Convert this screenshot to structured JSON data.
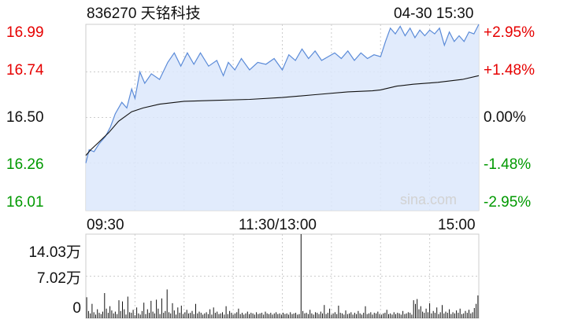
{
  "header": {
    "title": "836270 天铭科技",
    "datetime": "04-30 15:30"
  },
  "watermark": "sina.com",
  "colors": {
    "up": "#e60000",
    "down": "#009900",
    "neutral": "#111111",
    "price_line": "#5b8bd8",
    "price_fill": "#dce8fb",
    "avg_line": "#111111",
    "volume_bar": "#111111"
  },
  "chart_data": {
    "type": "line",
    "price_axis": {
      "left_ticks": [
        "16.99",
        "16.74",
        "16.50",
        "16.26",
        "16.01"
      ],
      "right_ticks": [
        "+2.95%",
        "+1.48%",
        "0.00%",
        "-1.48%",
        "-2.95%"
      ],
      "prev_close": 16.5,
      "ylim": [
        16.01,
        16.99
      ]
    },
    "time_axis": {
      "labels": [
        "09:30",
        "11:30/13:00",
        "15:00"
      ],
      "total_minutes": 240
    },
    "volume_axis": {
      "ticks": [
        "14.03万",
        "7.02万",
        "0"
      ],
      "ylim": [
        0,
        14.03
      ]
    },
    "series": [
      {
        "key": "price",
        "points": [
          [
            0,
            16.26
          ],
          [
            2,
            16.33
          ],
          [
            5,
            16.32
          ],
          [
            8,
            16.36
          ],
          [
            12,
            16.4
          ],
          [
            15,
            16.45
          ],
          [
            18,
            16.52
          ],
          [
            22,
            16.58
          ],
          [
            25,
            16.55
          ],
          [
            28,
            16.65
          ],
          [
            30,
            16.6
          ],
          [
            33,
            16.74
          ],
          [
            36,
            16.68
          ],
          [
            40,
            16.73
          ],
          [
            45,
            16.7
          ],
          [
            50,
            16.79
          ],
          [
            54,
            16.84
          ],
          [
            58,
            16.77
          ],
          [
            62,
            16.84
          ],
          [
            66,
            16.78
          ],
          [
            70,
            16.84
          ],
          [
            75,
            16.77
          ],
          [
            80,
            16.8
          ],
          [
            84,
            16.72
          ],
          [
            87,
            16.79
          ],
          [
            91,
            16.75
          ],
          [
            95,
            16.81
          ],
          [
            100,
            16.75
          ],
          [
            105,
            16.79
          ],
          [
            110,
            16.78
          ],
          [
            115,
            16.81
          ],
          [
            120,
            16.75
          ],
          [
            124,
            16.83
          ],
          [
            128,
            16.8
          ],
          [
            132,
            16.86
          ],
          [
            136,
            16.81
          ],
          [
            140,
            16.85
          ],
          [
            144,
            16.8
          ],
          [
            148,
            16.82
          ],
          [
            152,
            16.84
          ],
          [
            156,
            16.81
          ],
          [
            160,
            16.85
          ],
          [
            164,
            16.8
          ],
          [
            168,
            16.84
          ],
          [
            172,
            16.81
          ],
          [
            176,
            16.83
          ],
          [
            180,
            16.82
          ],
          [
            183,
            16.9
          ],
          [
            186,
            16.97
          ],
          [
            189,
            16.94
          ],
          [
            192,
            16.98
          ],
          [
            195,
            16.93
          ],
          [
            198,
            16.97
          ],
          [
            201,
            16.92
          ],
          [
            204,
            16.96
          ],
          [
            207,
            16.93
          ],
          [
            210,
            16.96
          ],
          [
            213,
            16.94
          ],
          [
            216,
            16.97
          ],
          [
            219,
            16.88
          ],
          [
            222,
            16.95
          ],
          [
            225,
            16.9
          ],
          [
            228,
            16.93
          ],
          [
            231,
            16.9
          ],
          [
            234,
            16.95
          ],
          [
            237,
            16.94
          ],
          [
            240,
            16.99
          ]
        ]
      },
      {
        "key": "average",
        "points": [
          [
            0,
            16.3
          ],
          [
            3,
            16.33
          ],
          [
            8,
            16.37
          ],
          [
            14,
            16.42
          ],
          [
            20,
            16.48
          ],
          [
            28,
            16.53
          ],
          [
            35,
            16.55
          ],
          [
            45,
            16.57
          ],
          [
            60,
            16.585
          ],
          [
            80,
            16.59
          ],
          [
            100,
            16.595
          ],
          [
            120,
            16.605
          ],
          [
            140,
            16.62
          ],
          [
            160,
            16.635
          ],
          [
            175,
            16.64
          ],
          [
            180,
            16.645
          ],
          [
            190,
            16.665
          ],
          [
            200,
            16.675
          ],
          [
            215,
            16.685
          ],
          [
            230,
            16.7
          ],
          [
            240,
            16.72
          ]
        ]
      }
    ],
    "volume": [
      3.5,
      1.2,
      0.8,
      2.4,
      1.0,
      0.6,
      1.5,
      0.9,
      0.7,
      1.1,
      4.2,
      1.6,
      0.9,
      2.0,
      1.3,
      0.8,
      1.1,
      0.7,
      3.0,
      1.2,
      2.8,
      1.5,
      0.6,
      3.6,
      1.0,
      0.9,
      1.4,
      0.5,
      1.8,
      0.8,
      0.6,
      1.2,
      2.6,
      0.7,
      1.5,
      0.9,
      2.9,
      1.1,
      0.8,
      3.1,
      1.6,
      0.7,
      3.3,
      0.9,
      1.2,
      4.8,
      1.0,
      0.8,
      2.5,
      1.3,
      0.6,
      1.8,
      0.9,
      2.1,
      0.7,
      1.0,
      1.4,
      0.8,
      0.9,
      1.2,
      0.7,
      2.4,
      0.8,
      1.1,
      0.9,
      0.6,
      0.8,
      1.0,
      0.7,
      1.5,
      0.6,
      1.8,
      0.9,
      1.1,
      0.7,
      0.8,
      1.0,
      0.6,
      2.0,
      0.7,
      1.2,
      0.9,
      0.6,
      0.8,
      1.0,
      1.6,
      0.7,
      0.9,
      0.6,
      0.8,
      1.1,
      0.7,
      0.9,
      0.8,
      0.6,
      1.0,
      0.7,
      0.8,
      0.9,
      0.6,
      1.1,
      0.8,
      0.7,
      0.9,
      0.6,
      0.8,
      1.0,
      0.7,
      0.8,
      0.6,
      0.9,
      0.7,
      0.8,
      0.6,
      1.0,
      0.7,
      0.8,
      0.9,
      0.6,
      0.7,
      14.03,
      1.2,
      0.8,
      0.9,
      0.7,
      1.4,
      0.8,
      0.6,
      1.0,
      0.9,
      0.7,
      1.1,
      0.8,
      2.2,
      0.7,
      0.9,
      1.6,
      0.6,
      0.8,
      1.0,
      0.7,
      2.1,
      0.9,
      0.8,
      0.6,
      1.3,
      0.7,
      0.8,
      1.0,
      0.6,
      0.9,
      0.7,
      1.2,
      0.8,
      0.6,
      0.9,
      2.0,
      0.7,
      0.8,
      1.0,
      0.6,
      0.9,
      0.8,
      1.1,
      0.7,
      0.6,
      0.8,
      0.9,
      1.4,
      0.7,
      0.8,
      0.6,
      1.0,
      0.7,
      0.9,
      0.8,
      0.6,
      1.2,
      0.7,
      0.8,
      1.0,
      0.9,
      0.6,
      3.0,
      2.4,
      3.2,
      1.5,
      2.0,
      1.1,
      0.9,
      1.6,
      1.0,
      2.5,
      0.8,
      1.2,
      0.9,
      1.8,
      0.7,
      1.0,
      2.2,
      0.8,
      1.1,
      0.9,
      1.5,
      0.7,
      1.0,
      0.8,
      1.3,
      0.9,
      1.6,
      0.7,
      0.8,
      1.2,
      0.9,
      1.4,
      0.8,
      1.0,
      1.7,
      2.4,
      3.8
    ]
  }
}
